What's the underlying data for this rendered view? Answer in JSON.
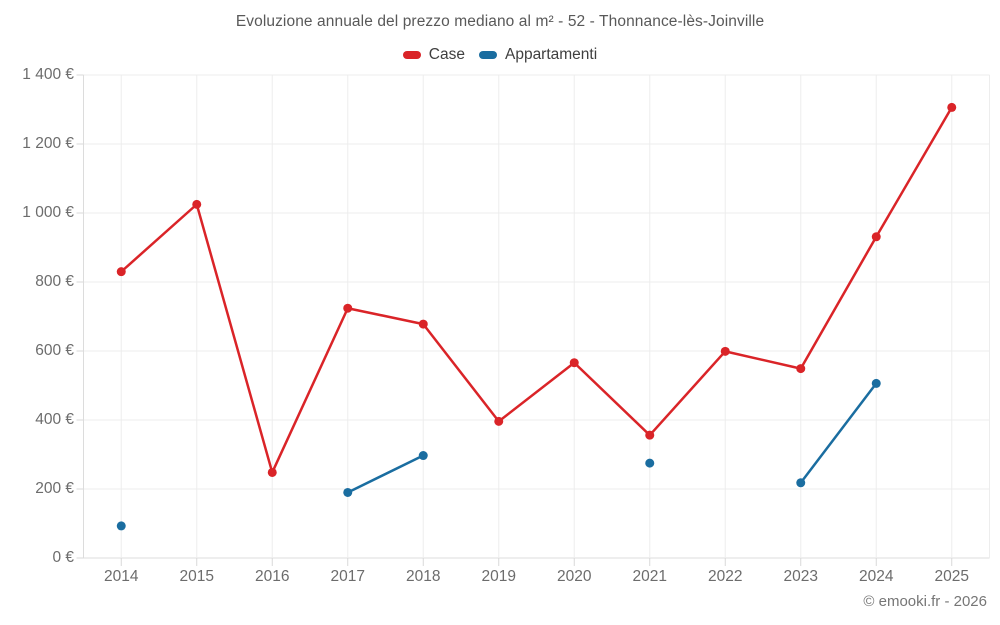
{
  "chart_data": {
    "type": "line",
    "title": "Evoluzione annuale del prezzo mediano al m² - 52 - Thonnance-lès-Joinville",
    "categories": [
      "2014",
      "2015",
      "2016",
      "2017",
      "2018",
      "2019",
      "2020",
      "2021",
      "2022",
      "2023",
      "2024",
      "2025"
    ],
    "series": [
      {
        "name": "Case",
        "color": "#da2428",
        "values": [
          830,
          1025,
          248,
          724,
          678,
          396,
          566,
          356,
          599,
          549,
          931,
          1306
        ]
      },
      {
        "name": "Appartamenti",
        "color": "#1a6da0",
        "values": [
          93,
          null,
          null,
          190,
          297,
          null,
          null,
          275,
          null,
          218,
          506,
          null
        ]
      }
    ],
    "xlabel": "",
    "ylabel": "",
    "ylim": [
      0,
      1400
    ],
    "ytick_step": 200,
    "ytick_labels": [
      "0 €",
      "200 €",
      "400 €",
      "600 €",
      "800 €",
      "1 000 €",
      "1 200 €",
      "1 400 €"
    ],
    "grid": true,
    "legend_position": "top",
    "colors": {
      "gridline": "#ededed",
      "axis_line": "#dcdcdc",
      "tick": "#d9d9d9"
    }
  },
  "footer": {
    "copyright": "© emooki.fr - 2026"
  }
}
